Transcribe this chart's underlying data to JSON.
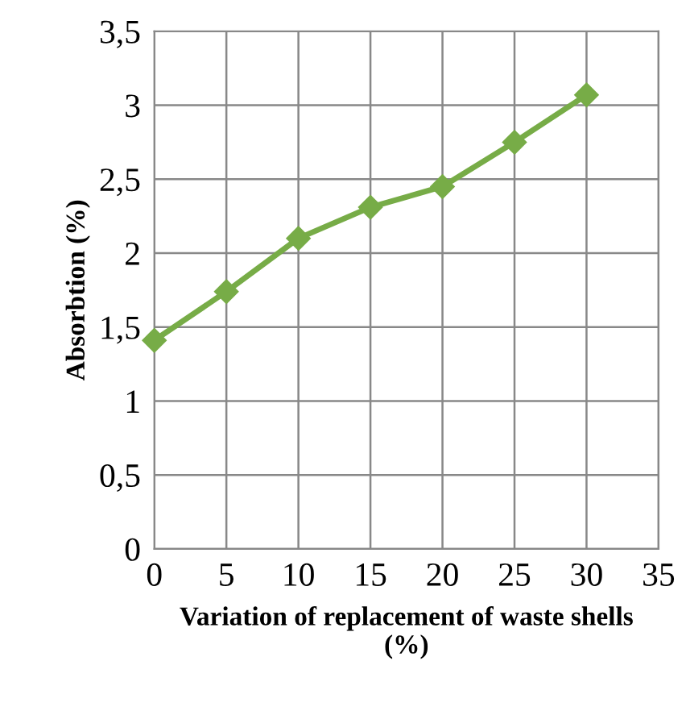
{
  "chart_data": {
    "type": "line",
    "xlabel": "Variation of replacement of waste shells\n(%)",
    "ylabel": "Absorbtion (%)",
    "x": [
      0,
      5,
      10,
      15,
      20,
      25,
      30
    ],
    "series": [
      {
        "color": "#77ac47",
        "values": [
          1.41,
          1.74,
          2.1,
          2.31,
          2.45,
          2.75,
          3.07
        ]
      }
    ],
    "xlim": [
      0,
      35
    ],
    "xticks": [
      0,
      5,
      10,
      15,
      20,
      25,
      30,
      35
    ],
    "ylim": [
      0,
      3.5
    ],
    "yticks": [
      0,
      {
        "value": 0.5,
        "label": "0,5"
      },
      1,
      {
        "value": 1.5,
        "label": "1,5"
      },
      2,
      {
        "value": 2.5,
        "label": "2,5"
      },
      3,
      {
        "value": 3.5,
        "label": "3,5"
      }
    ],
    "grid": true,
    "marker": "diamond",
    "line_style": "solid",
    "legend": false
  }
}
